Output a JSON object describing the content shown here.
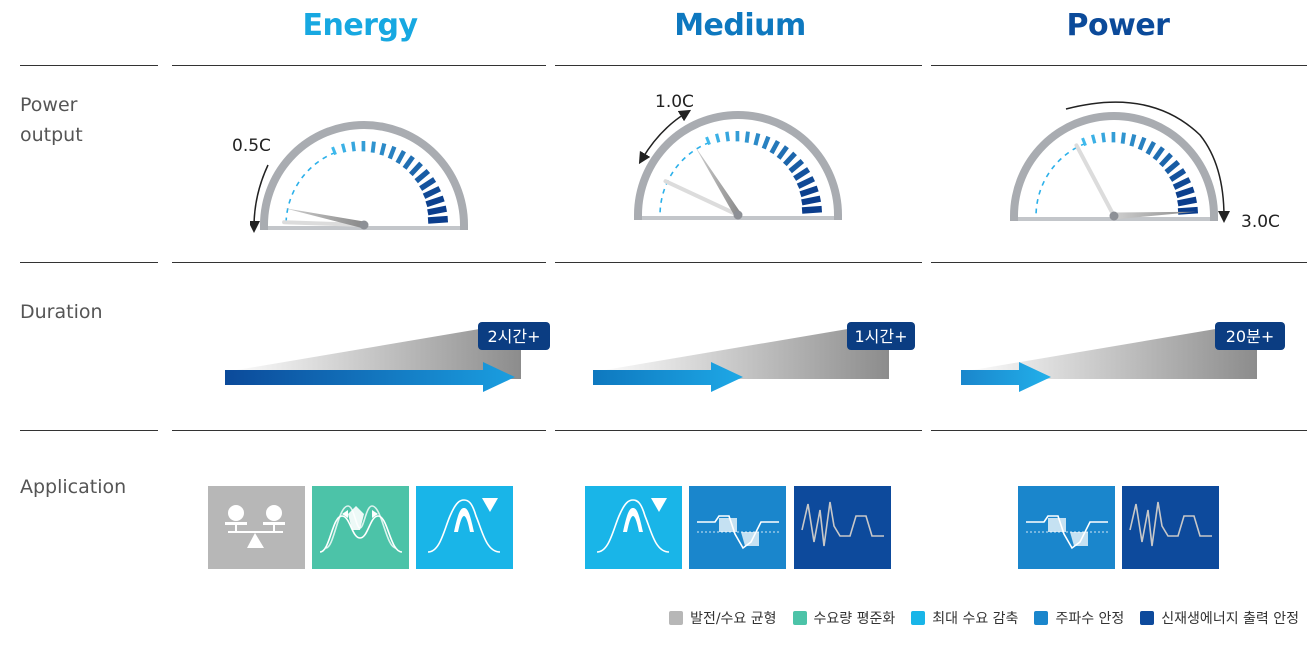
{
  "columns": [
    {
      "title": "Energy",
      "color": "#17a8e1",
      "c_rate": "0.5C",
      "duration": "2시간+"
    },
    {
      "title": "Medium",
      "color": "#0e78bf",
      "c_rate": "1.0C",
      "duration": "1시간+"
    },
    {
      "title": "Power",
      "color": "#0b4a9a",
      "c_rate": "3.0C",
      "duration": "20분+"
    }
  ],
  "rows": {
    "power_output": "Power\noutput",
    "duration": "Duration",
    "application": "Application"
  },
  "legend": [
    {
      "label": "발전/수요 균형",
      "color": "#b7b7b7"
    },
    {
      "label": "수요량 평준화",
      "color": "#4cc3a8"
    },
    {
      "label": "최대 수요 감축",
      "color": "#19b5e8"
    },
    {
      "label": "주파수 안정",
      "color": "#1a86cc"
    },
    {
      "label": "신재생에너지 출력 안정",
      "color": "#0d4a9c"
    }
  ],
  "icons": {
    "balance": "balance-scale-icon",
    "leveling": "load-leveling-icon",
    "peak": "peak-shaving-icon",
    "frequency": "frequency-regulation-icon",
    "renewable": "renewable-smoothing-icon"
  }
}
